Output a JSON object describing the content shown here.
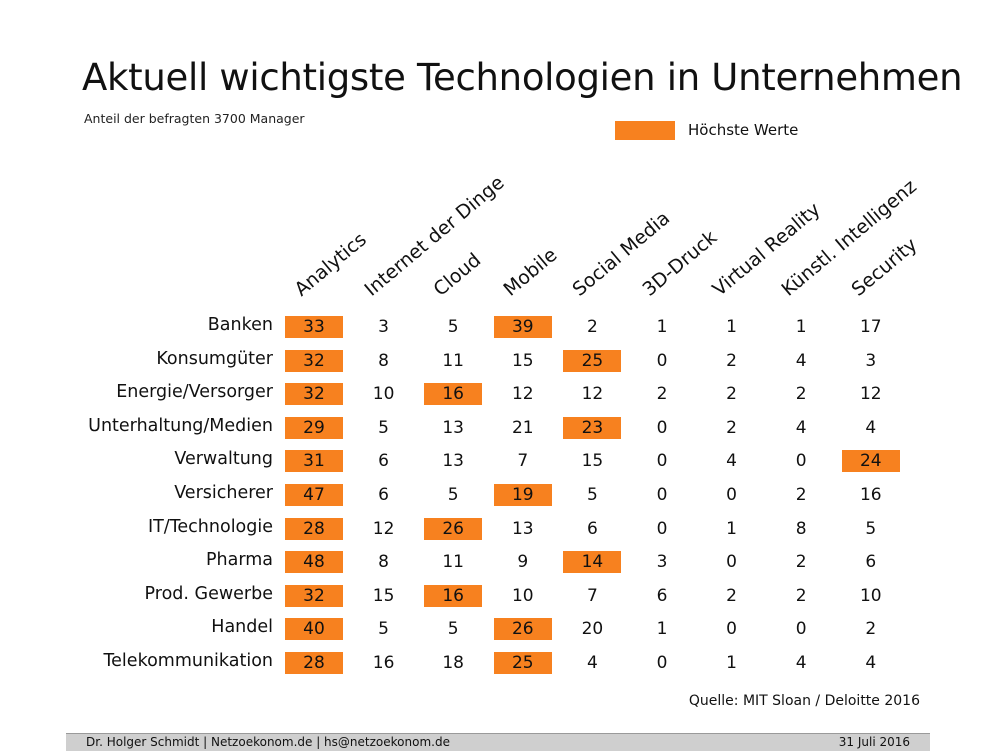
{
  "title": "Aktuell wichtigste Technologien in Unternehmen",
  "subtitle": "Anteil der befragten 3700 Manager",
  "legend": {
    "label": "Höchste Werte",
    "color": "#F7811F"
  },
  "source": "Quelle: MIT Sloan / Deloitte 2016",
  "footer": {
    "left": "Dr. Holger Schmidt  |  Netzoekonom.de   |   hs@netzoekonom.de",
    "right": "31 Juli 2016"
  },
  "chart_data": {
    "type": "table",
    "title": "Aktuell wichtigste Technologien in Unternehmen",
    "columns": [
      "Analytics",
      "Internet der Dinge",
      "Cloud",
      "Mobile",
      "Social Media",
      "3D-Druck",
      "Virtual Reality",
      "Künstl. Intelligenz",
      "Security"
    ],
    "rows": [
      "Banken",
      "Konsumgüter",
      "Energie/Versorger",
      "Unterhaltung/Medien",
      "Verwaltung",
      "Versicherer",
      "IT/Technologie",
      "Pharma",
      "Prod. Gewerbe",
      "Handel",
      "Telekommunikation"
    ],
    "values": [
      [
        33,
        3,
        5,
        39,
        2,
        1,
        1,
        1,
        17
      ],
      [
        32,
        8,
        11,
        15,
        25,
        0,
        2,
        4,
        3
      ],
      [
        32,
        10,
        16,
        12,
        12,
        2,
        2,
        2,
        12
      ],
      [
        29,
        5,
        13,
        21,
        23,
        0,
        2,
        4,
        4
      ],
      [
        31,
        6,
        13,
        7,
        15,
        0,
        4,
        0,
        24
      ],
      [
        47,
        6,
        5,
        19,
        5,
        0,
        0,
        2,
        16
      ],
      [
        28,
        12,
        26,
        13,
        6,
        0,
        1,
        8,
        5
      ],
      [
        48,
        8,
        11,
        9,
        14,
        3,
        0,
        2,
        6
      ],
      [
        32,
        15,
        16,
        10,
        7,
        6,
        2,
        2,
        10
      ],
      [
        40,
        5,
        5,
        26,
        20,
        1,
        0,
        0,
        2
      ],
      [
        28,
        16,
        18,
        25,
        4,
        0,
        1,
        4,
        4
      ]
    ],
    "highlighted": [
      [
        0,
        3
      ],
      [
        1,
        4
      ],
      [
        2,
        2
      ],
      [
        3,
        4
      ],
      [
        4,
        8
      ],
      [
        5,
        3
      ],
      [
        6,
        2
      ],
      [
        7,
        4
      ],
      [
        8,
        2
      ],
      [
        9,
        3
      ],
      [
        10,
        3
      ],
      [
        0,
        0
      ],
      [
        1,
        0
      ],
      [
        2,
        0
      ],
      [
        3,
        0
      ],
      [
        4,
        0
      ],
      [
        5,
        0
      ],
      [
        6,
        0
      ],
      [
        7,
        0
      ],
      [
        8,
        0
      ],
      [
        9,
        0
      ],
      [
        10,
        0
      ]
    ],
    "highlight_color": "#F7811F"
  }
}
